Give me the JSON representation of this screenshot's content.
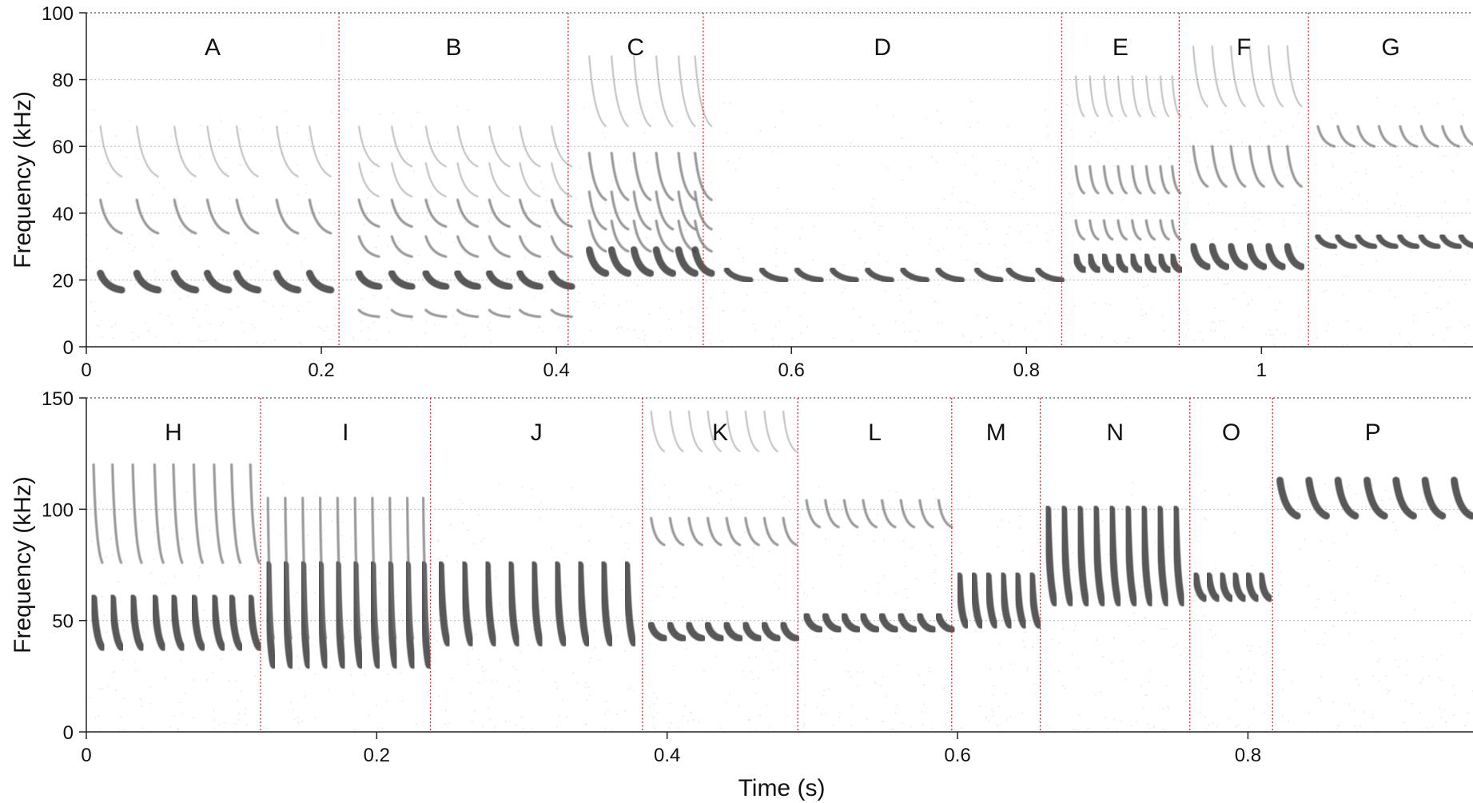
{
  "chart_data": [
    {
      "type": "spectrogram",
      "xlabel": "",
      "ylabel": "Frequency (kHz)",
      "xlim": [
        0,
        1.18
      ],
      "ylim": [
        0,
        100
      ],
      "xticks": [
        0,
        0.2,
        0.4,
        0.6,
        0.8,
        1
      ],
      "xtick_labels": [
        "0",
        "0.2",
        "0.4",
        "0.6",
        "0.8",
        "1"
      ],
      "yticks": [
        0,
        20,
        40,
        60,
        80,
        100
      ],
      "grid": true,
      "segments": [
        {
          "label": "A",
          "start": 0.0,
          "end": 0.215,
          "calls": [
            {
              "times": [
                0.012,
                0.043,
                0.075,
                0.103,
                0.128,
                0.162,
                0.19
              ],
              "dur": 0.018,
              "f_top": 22,
              "f_bot": 17,
              "harmonics": [
                2,
                3
              ]
            }
          ]
        },
        {
          "label": "B",
          "start": 0.215,
          "end": 0.41,
          "calls": [
            {
              "times": [
                0.232,
                0.26,
                0.289,
                0.316,
                0.343,
                0.369,
                0.396
              ],
              "dur": 0.017,
              "f_top": 22,
              "f_bot": 18,
              "harmonics": [
                0.5,
                1.5,
                2,
                2.5,
                3
              ]
            }
          ]
        },
        {
          "label": "C",
          "start": 0.41,
          "end": 0.525,
          "calls": [
            {
              "times": [
                0.428,
                0.447,
                0.466,
                0.485,
                0.504,
                0.518
              ],
              "dur": 0.014,
              "f_top": 29,
              "f_bot": 22,
              "harmonics": [
                1.3,
                1.6,
                2,
                3
              ]
            }
          ]
        },
        {
          "label": "D",
          "start": 0.525,
          "end": 0.83,
          "calls": [
            {
              "times": [
                0.545,
                0.575,
                0.605,
                0.635,
                0.665,
                0.695,
                0.725,
                0.758,
                0.785,
                0.81
              ],
              "dur": 0.02,
              "f_top": 23,
              "f_bot": 20,
              "harmonics": []
            }
          ]
        },
        {
          "label": "E",
          "start": 0.83,
          "end": 0.93,
          "calls": [
            {
              "times": [
                0.842,
                0.854,
                0.866,
                0.878,
                0.89,
                0.902,
                0.914,
                0.924
              ],
              "dur": 0.007,
              "f_top": 27,
              "f_bot": 23,
              "harmonics": [
                1.4,
                2,
                3
              ]
            }
          ]
        },
        {
          "label": "F",
          "start": 0.93,
          "end": 1.04,
          "calls": [
            {
              "times": [
                0.942,
                0.958,
                0.974,
                0.99,
                1.006,
                1.022
              ],
              "dur": 0.012,
              "f_top": 30,
              "f_bot": 24,
              "harmonics": [
                2,
                3
              ]
            }
          ]
        },
        {
          "label": "G",
          "start": 1.04,
          "end": 1.18,
          "calls": [
            {
              "times": [
                1.048,
                1.065,
                1.082,
                1.1,
                1.118,
                1.136,
                1.154,
                1.17
              ],
              "dur": 0.014,
              "f_top": 33,
              "f_bot": 30,
              "harmonics": [
                2
              ]
            }
          ]
        }
      ]
    },
    {
      "type": "spectrogram",
      "xlabel": "Time (s)",
      "ylabel": "Frequency (kHz)",
      "xlim": [
        0,
        0.955
      ],
      "ylim": [
        0,
        150
      ],
      "xticks": [
        0,
        0.2,
        0.4,
        0.6,
        0.8
      ],
      "xtick_labels": [
        "0",
        "0.2",
        "0.4",
        "0.6",
        "0.8"
      ],
      "yticks": [
        0,
        50,
        100,
        150
      ],
      "grid": true,
      "segments": [
        {
          "label": "H",
          "start": 0.0,
          "end": 0.12,
          "calls": [
            {
              "times": [
                0.005,
                0.018,
                0.032,
                0.047,
                0.06,
                0.074,
                0.088,
                0.1,
                0.113
              ],
              "dur": 0.006,
              "f_top": 60,
              "f_bot": 38,
              "harmonics": [
                2,
                3
              ]
            }
          ]
        },
        {
          "label": "I",
          "start": 0.12,
          "end": 0.237,
          "calls": [
            {
              "times": [
                0.125,
                0.137,
                0.149,
                0.161,
                0.173,
                0.185,
                0.197,
                0.209,
                0.221,
                0.232
              ],
              "dur": 0.004,
              "f_top": 75,
              "f_bot": 30,
              "harmonics": [
                1.4
              ]
            }
          ]
        },
        {
          "label": "J",
          "start": 0.237,
          "end": 0.383,
          "calls": [
            {
              "times": [
                0.244,
                0.26,
                0.276,
                0.292,
                0.308,
                0.324,
                0.34,
                0.356,
                0.372
              ],
              "dur": 0.005,
              "f_top": 75,
              "f_bot": 40,
              "harmonics": []
            }
          ]
        },
        {
          "label": "K",
          "start": 0.383,
          "end": 0.49,
          "calls": [
            {
              "times": [
                0.389,
                0.402,
                0.415,
                0.428,
                0.441,
                0.454,
                0.467,
                0.48
              ],
              "dur": 0.009,
              "f_top": 48,
              "f_bot": 42,
              "harmonics": [
                2,
                3
              ]
            }
          ]
        },
        {
          "label": "L",
          "start": 0.49,
          "end": 0.596,
          "calls": [
            {
              "times": [
                0.496,
                0.509,
                0.522,
                0.535,
                0.548,
                0.561,
                0.574,
                0.587
              ],
              "dur": 0.009,
              "f_top": 52,
              "f_bot": 46,
              "harmonics": [
                2,
                3
              ]
            }
          ]
        },
        {
          "label": "M",
          "start": 0.596,
          "end": 0.657,
          "calls": [
            {
              "times": [
                0.601,
                0.611,
                0.621,
                0.631,
                0.641,
                0.651
              ],
              "dur": 0.005,
              "f_top": 70,
              "f_bot": 48,
              "harmonics": []
            }
          ]
        },
        {
          "label": "N",
          "start": 0.657,
          "end": 0.76,
          "calls": [
            {
              "times": [
                0.662,
                0.673,
                0.684,
                0.695,
                0.706,
                0.717,
                0.728,
                0.739,
                0.75
              ],
              "dur": 0.005,
              "f_top": 100,
              "f_bot": 58,
              "harmonics": []
            }
          ]
        },
        {
          "label": "O",
          "start": 0.76,
          "end": 0.817,
          "calls": [
            {
              "times": [
                0.764,
                0.773,
                0.782,
                0.791,
                0.8,
                0.809
              ],
              "dur": 0.006,
              "f_top": 70,
              "f_bot": 60,
              "harmonics": []
            }
          ]
        },
        {
          "label": "P",
          "start": 0.817,
          "end": 0.955,
          "calls": [
            {
              "times": [
                0.822,
                0.842,
                0.862,
                0.882,
                0.902,
                0.922,
                0.942
              ],
              "dur": 0.012,
              "f_top": 113,
              "f_bot": 97,
              "harmonics": []
            }
          ]
        }
      ]
    }
  ]
}
